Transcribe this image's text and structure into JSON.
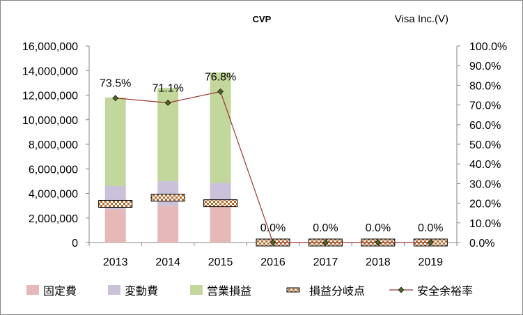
{
  "chart_data": {
    "type": "bar",
    "title": "CVP",
    "subtitle": "Visa Inc.(V)",
    "categories": [
      "2013",
      "2014",
      "2015",
      "2016",
      "2017",
      "2018",
      "2019"
    ],
    "stack_series": [
      {
        "name": "固定費",
        "color": "#e6b9b8",
        "values": [
          2700000,
          3000000,
          2900000,
          0,
          0,
          0,
          0
        ]
      },
      {
        "name": "変動費",
        "color": "#ccc1da",
        "values": [
          1900000,
          2000000,
          1950000,
          0,
          0,
          0,
          0
        ]
      },
      {
        "name": "営業損益",
        "color": "#c3d69b",
        "values": [
          7200000,
          7600000,
          9000000,
          0,
          0,
          0,
          0
        ]
      }
    ],
    "breakeven": {
      "name": "損益分岐点",
      "values": [
        3150000,
        3650000,
        3200000,
        0,
        0,
        0,
        0
      ]
    },
    "safety_margin": {
      "name": "安全余裕率",
      "values": [
        0.735,
        0.711,
        0.768,
        0.0,
        0.0,
        0.0,
        0.0
      ],
      "labels": [
        "73.5%",
        "71.1%",
        "76.8%",
        "0.0%",
        "0.0%",
        "0.0%",
        "0.0%"
      ],
      "line_color": "#953735",
      "marker_color": "#4f6228"
    },
    "y_left": {
      "min": 0,
      "max": 16000000,
      "ticks": [
        "0",
        "2,000,000",
        "4,000,000",
        "6,000,000",
        "8,000,000",
        "10,000,000",
        "12,000,000",
        "14,000,000",
        "16,000,000"
      ]
    },
    "y_right": {
      "min": 0,
      "max": 1.0,
      "ticks": [
        "0.0%",
        "10.0%",
        "20.0%",
        "30.0%",
        "40.0%",
        "50.0%",
        "60.0%",
        "70.0%",
        "80.0%",
        "90.0%",
        "100.0%"
      ]
    },
    "legend_position": "bottom",
    "grid": false
  }
}
